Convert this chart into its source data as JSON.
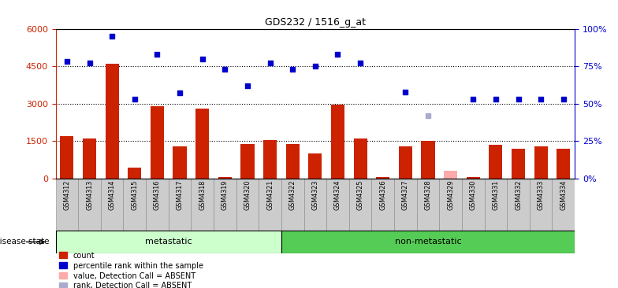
{
  "title": "GDS232 / 1516_g_at",
  "samples": [
    "GSM4312",
    "GSM4313",
    "GSM4314",
    "GSM4315",
    "GSM4316",
    "GSM4317",
    "GSM4318",
    "GSM4319",
    "GSM4320",
    "GSM4321",
    "GSM4322",
    "GSM4323",
    "GSM4324",
    "GSM4325",
    "GSM4326",
    "GSM4327",
    "GSM4328",
    "GSM4329",
    "GSM4330",
    "GSM4331",
    "GSM4332",
    "GSM4333",
    "GSM4334"
  ],
  "counts": [
    1700,
    1600,
    4600,
    450,
    2900,
    1300,
    2800,
    50,
    1400,
    1550,
    1400,
    1000,
    2950,
    1600,
    50,
    1300,
    1500,
    0,
    50,
    1350,
    1200,
    1300,
    1200
  ],
  "counts_absent": [
    false,
    false,
    false,
    false,
    false,
    false,
    false,
    false,
    false,
    false,
    false,
    false,
    false,
    false,
    false,
    false,
    false,
    true,
    false,
    false,
    false,
    false,
    false
  ],
  "counts_absent_val": 300,
  "ranks_pct": [
    78,
    77,
    95,
    53,
    83,
    57,
    80,
    73,
    62,
    77,
    73,
    75,
    83,
    77,
    null,
    58,
    null,
    null,
    53,
    53,
    53,
    53,
    53
  ],
  "rank_absent_idx": 16,
  "rank_absent_pct": 42,
  "metastatic_count": 10,
  "non_metastatic_count": 13,
  "left_ylim": [
    0,
    6000
  ],
  "right_ylim": [
    0,
    100
  ],
  "left_ticks": [
    0,
    1500,
    3000,
    4500,
    6000
  ],
  "right_ticks": [
    0,
    25,
    50,
    75,
    100
  ],
  "bar_color": "#cc2200",
  "bar_absent_color": "#ffaaaa",
  "rank_color": "#0000cc",
  "rank_absent_color": "#aaaacc",
  "metastatic_bg": "#ccffcc",
  "nonmetastatic_bg": "#55cc55",
  "tick_bg": "#cccccc",
  "bg_color": "#ffffff",
  "dotted_color": "#000000",
  "left_tick_color": "#cc2200",
  "right_tick_color": "#0000cc",
  "legend_items": [
    "count",
    "percentile rank within the sample",
    "value, Detection Call = ABSENT",
    "rank, Detection Call = ABSENT"
  ]
}
